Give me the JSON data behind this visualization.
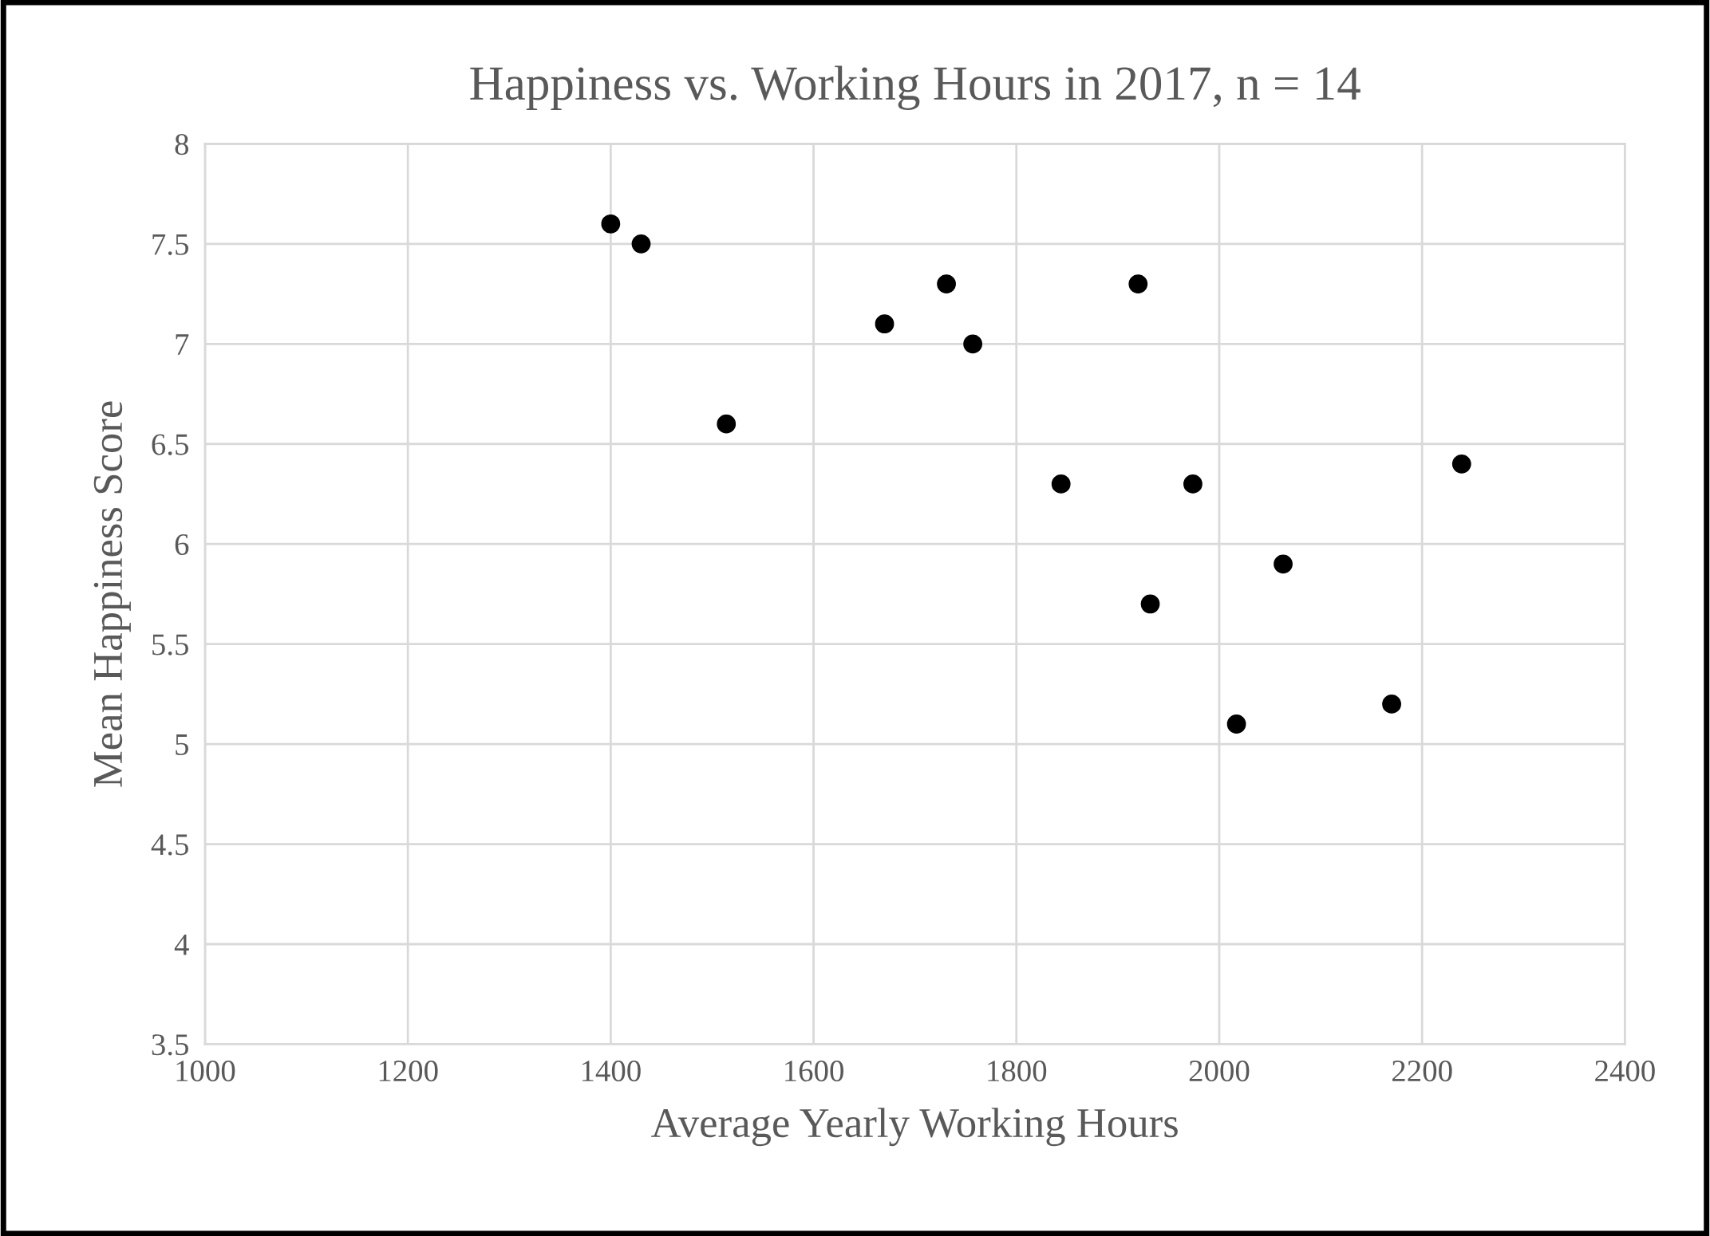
{
  "chart_data": {
    "type": "scatter",
    "title": "Happiness vs. Working Hours in 2017, n = 14",
    "xlabel": "Average Yearly Working Hours",
    "ylabel": "Mean Happiness Score",
    "x": [
      1400,
      1430,
      1514,
      1670,
      1731,
      1757,
      1844,
      1920,
      1932,
      1974,
      2017,
      2063,
      2170,
      2239
    ],
    "series": [
      {
        "color": "#000000",
        "values": [
          7.6,
          7.5,
          6.6,
          7.1,
          7.3,
          7.0,
          6.3,
          7.3,
          5.7,
          6.3,
          5.1,
          5.9,
          5.2,
          6.4
        ]
      }
    ],
    "xlim": [
      1000,
      2400
    ],
    "xticks": [
      1000,
      1200,
      1400,
      1600,
      1800,
      2000,
      2200,
      2400
    ],
    "ylim": [
      3.5,
      8
    ],
    "yticks": [
      3.5,
      4,
      4.5,
      5,
      5.5,
      6,
      6.5,
      7,
      7.5,
      8
    ],
    "grid": true,
    "marker": "circle",
    "legend": false
  }
}
